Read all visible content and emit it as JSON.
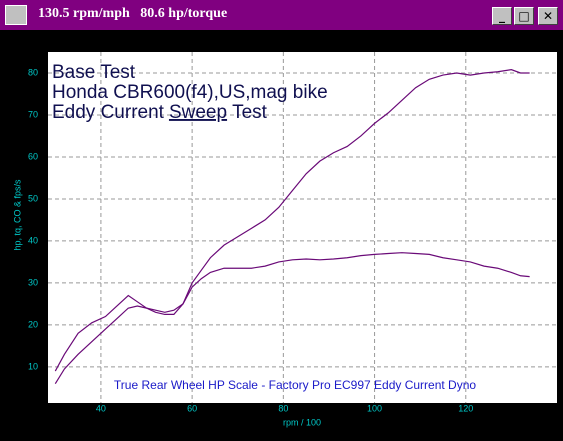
{
  "window": {
    "title": "130.5 rpm/mph   80.6 hp/torque"
  },
  "chart_data": {
    "type": "line",
    "annotations": [
      "Base Test",
      "Honda CBR600(f4),US,mag bike",
      [
        "Eddy Current",
        "Sweep",
        "Test"
      ]
    ],
    "footer": "True Rear Wheel HP Scale - Factory Pro EC997 Eddy Current Dyno",
    "x_label": "rpm / 100",
    "y_label": "hp, tq, CO & fps/s",
    "x": [
      30,
      32,
      35,
      38,
      41,
      44,
      46,
      48,
      50,
      52,
      54,
      56,
      58,
      60,
      62,
      64,
      67,
      70,
      73,
      76,
      79,
      82,
      85,
      88,
      91,
      94,
      97,
      100,
      103,
      106,
      109,
      112,
      115,
      118,
      121,
      124,
      127,
      130,
      132,
      134
    ],
    "series": [
      {
        "color": "#6a0a78",
        "values": [
          6,
          9.5,
          13,
          16,
          19,
          22,
          24,
          24.5,
          24,
          23,
          22.5,
          22.5,
          25,
          30,
          33,
          36,
          39,
          41,
          43,
          45,
          48,
          52,
          56,
          59,
          61,
          62.5,
          65,
          68,
          70.5,
          73.5,
          76.5,
          78.5,
          79.5,
          80,
          79.5,
          80,
          80.3,
          80.8,
          80,
          80
        ]
      },
      {
        "color": "#6a0a78",
        "values": [
          9,
          13,
          18,
          20.5,
          22,
          25,
          27,
          25.5,
          24,
          23.5,
          23,
          23.5,
          25,
          29,
          31,
          32.5,
          33.5,
          33.5,
          33.5,
          34,
          35,
          35.5,
          35.7,
          35.5,
          35.7,
          36,
          36.5,
          36.8,
          37,
          37.2,
          37,
          36.8,
          36,
          35.5,
          35,
          34,
          33.5,
          32.5,
          31.7,
          31.5
        ]
      }
    ],
    "xlim": [
      28.4,
      140
    ],
    "ylim": [
      1.4,
      85
    ],
    "xticks": [
      40,
      60,
      80,
      100,
      120
    ],
    "yticks": [
      10,
      20,
      30,
      40,
      50,
      60,
      70,
      80
    ],
    "grid": true
  }
}
